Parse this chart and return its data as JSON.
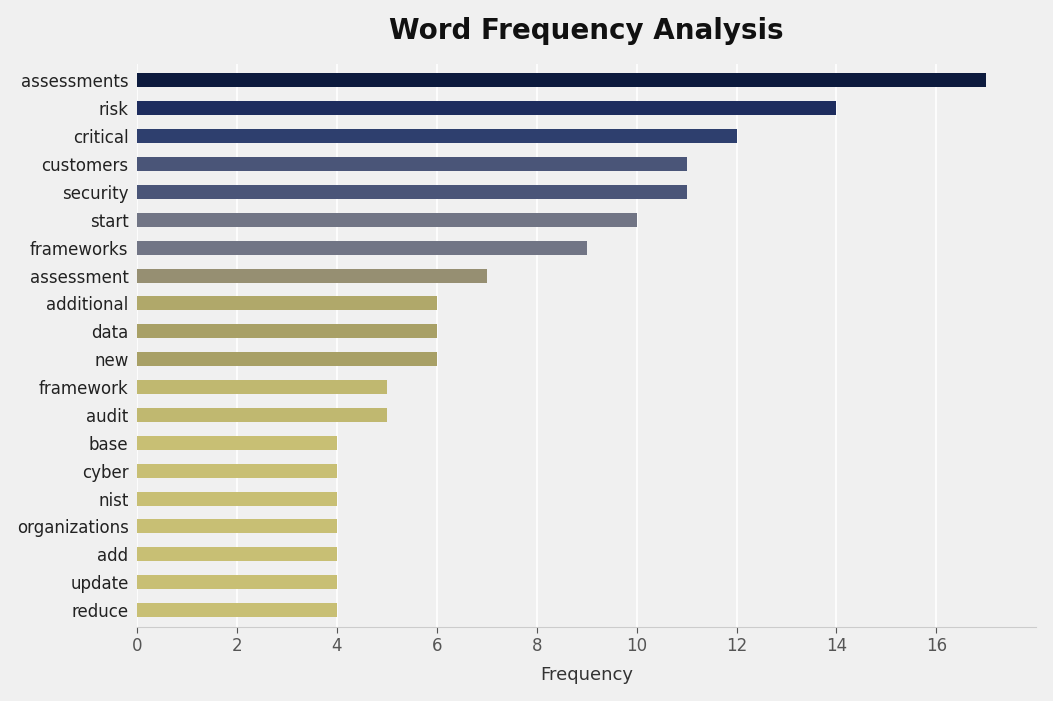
{
  "categories": [
    "assessments",
    "risk",
    "critical",
    "customers",
    "security",
    "start",
    "frameworks",
    "assessment",
    "additional",
    "data",
    "new",
    "framework",
    "audit",
    "base",
    "cyber",
    "nist",
    "organizations",
    "add",
    "update",
    "reduce"
  ],
  "values": [
    17,
    14,
    12,
    11,
    11,
    10,
    9,
    7,
    6,
    6,
    6,
    5,
    5,
    4,
    4,
    4,
    4,
    4,
    4,
    4
  ],
  "bar_colors": [
    "#0d1b3e",
    "#1e2d5e",
    "#2e3f6e",
    "#4a5578",
    "#4a5578",
    "#717585",
    "#717585",
    "#968f72",
    "#b0a86a",
    "#a8a066",
    "#a8a066",
    "#c0b870",
    "#c0b870",
    "#c8bf74",
    "#c8bf74",
    "#c8bf74",
    "#c8bf74",
    "#c8bf74",
    "#c8bf74",
    "#c8bf74"
  ],
  "title": "Word Frequency Analysis",
  "xlabel": "Frequency",
  "background_color": "#f0f0f0",
  "plot_bg_color": "#f0f0f0",
  "xlim": [
    0,
    18
  ],
  "xticks": [
    0,
    2,
    4,
    6,
    8,
    10,
    12,
    14,
    16
  ],
  "title_fontsize": 20,
  "label_fontsize": 13,
  "tick_fontsize": 12,
  "bar_height": 0.5
}
